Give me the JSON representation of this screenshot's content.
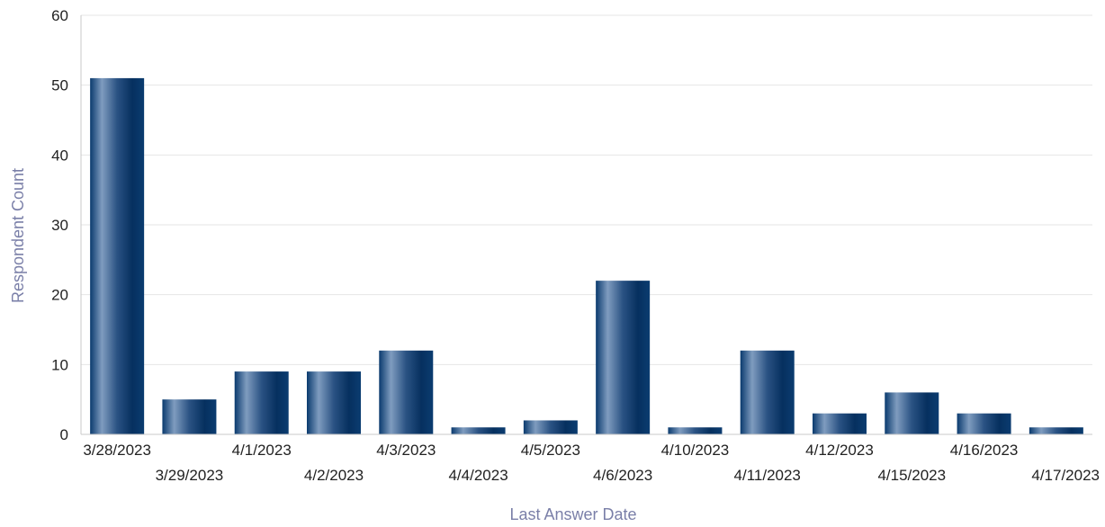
{
  "chart_data": {
    "type": "bar",
    "categories": [
      "3/28/2023",
      "3/29/2023",
      "4/1/2023",
      "4/2/2023",
      "4/3/2023",
      "4/4/2023",
      "4/5/2023",
      "4/6/2023",
      "4/10/2023",
      "4/11/2023",
      "4/12/2023",
      "4/15/2023",
      "4/16/2023",
      "4/17/2023"
    ],
    "values": [
      51,
      5,
      9,
      9,
      12,
      1,
      2,
      22,
      1,
      12,
      3,
      6,
      3,
      1
    ],
    "xlabel": "Last Answer Date",
    "ylabel": "Respondent Count",
    "ylim": [
      0,
      60
    ],
    "yticks": [
      0,
      10,
      20,
      30,
      40,
      50,
      60
    ],
    "grid": true,
    "legend": "none",
    "colors": {
      "bar_dark": "#06305f",
      "bar_light": "#7f9cbf",
      "grid": "#e6e6e6",
      "axis_title": "#7a7fa8"
    }
  }
}
